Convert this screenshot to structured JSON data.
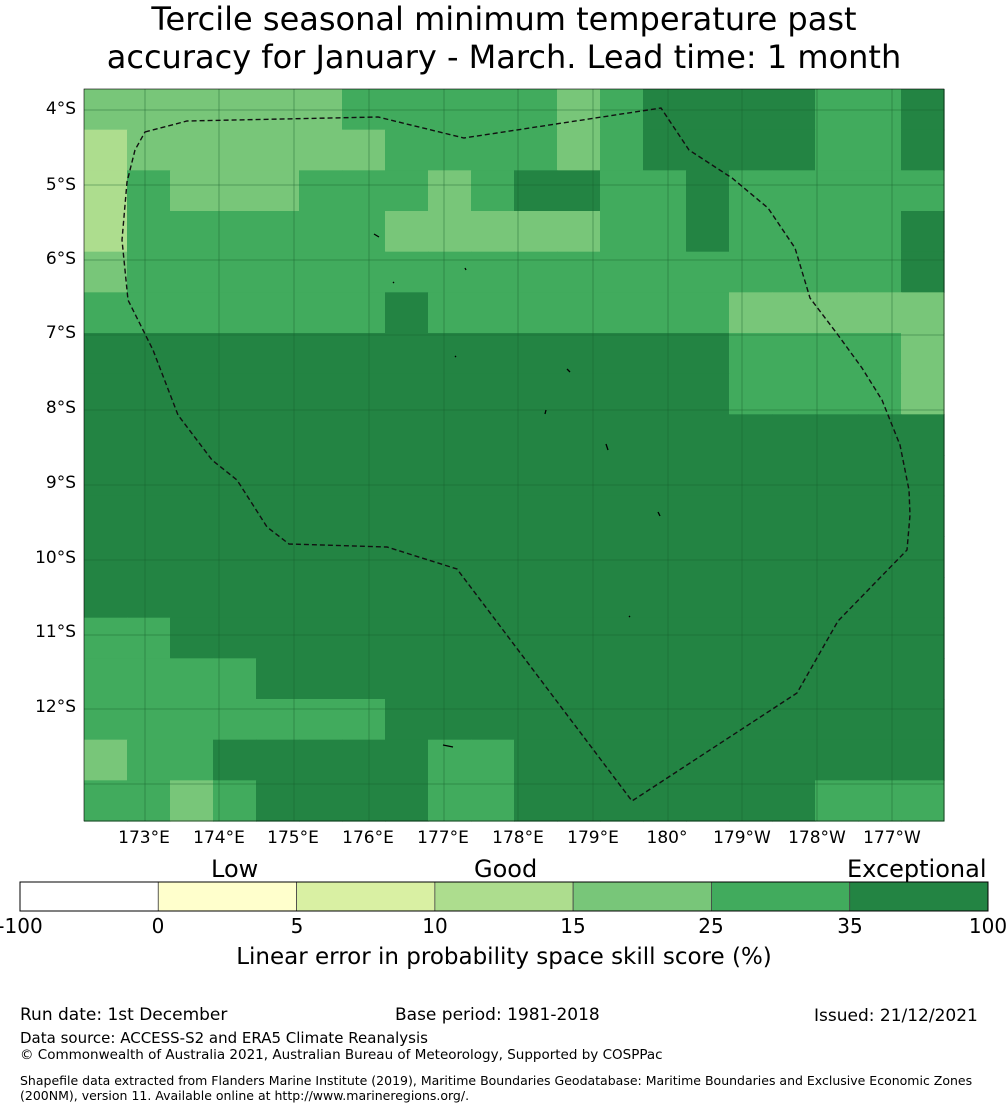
{
  "title": {
    "line1": "Tercile seasonal minimum temperature past",
    "line2": "accuracy for January - March. Lead time: 1 month"
  },
  "map": {
    "lat_labels": [
      "4°S",
      "5°S",
      "6°S",
      "7°S",
      "8°S",
      "9°S",
      "10°S",
      "11°S",
      "12°S"
    ],
    "lon_labels": [
      "173°E",
      "174°E",
      "175°E",
      "176°E",
      "177°E",
      "178°E",
      "179°E",
      "180°",
      "179°W",
      "178°W",
      "177°W"
    ],
    "grid": [
      [
        4,
        4,
        4,
        4,
        4,
        4,
        5,
        5,
        5,
        5,
        5,
        4,
        5,
        6,
        6,
        6,
        6,
        5,
        5,
        6
      ],
      [
        3,
        4,
        4,
        4,
        4,
        4,
        4,
        5,
        5,
        5,
        5,
        4,
        5,
        6,
        6,
        6,
        6,
        5,
        5,
        6
      ],
      [
        3,
        5,
        4,
        4,
        4,
        5,
        5,
        5,
        4,
        5,
        6,
        6,
        5,
        5,
        6,
        5,
        5,
        5,
        5,
        5
      ],
      [
        3,
        5,
        5,
        5,
        5,
        5,
        5,
        4,
        4,
        4,
        4,
        4,
        5,
        5,
        6,
        5,
        5,
        5,
        5,
        6
      ],
      [
        4,
        5,
        5,
        5,
        5,
        5,
        5,
        5,
        5,
        5,
        5,
        5,
        5,
        5,
        5,
        5,
        5,
        5,
        5,
        6
      ],
      [
        5,
        5,
        5,
        5,
        5,
        5,
        5,
        6,
        5,
        5,
        5,
        5,
        5,
        5,
        5,
        4,
        4,
        4,
        4,
        4
      ],
      [
        6,
        6,
        6,
        6,
        6,
        6,
        6,
        6,
        6,
        6,
        6,
        6,
        6,
        6,
        6,
        5,
        5,
        5,
        5,
        4
      ],
      [
        6,
        6,
        6,
        6,
        6,
        6,
        6,
        6,
        6,
        6,
        6,
        6,
        6,
        6,
        6,
        5,
        5,
        5,
        5,
        4
      ],
      [
        6,
        6,
        6,
        6,
        6,
        6,
        6,
        6,
        6,
        6,
        6,
        6,
        6,
        6,
        6,
        6,
        6,
        6,
        6,
        6
      ],
      [
        6,
        6,
        6,
        6,
        6,
        6,
        6,
        6,
        6,
        6,
        6,
        6,
        6,
        6,
        6,
        6,
        6,
        6,
        6,
        6
      ],
      [
        6,
        6,
        6,
        6,
        6,
        6,
        6,
        6,
        6,
        6,
        6,
        6,
        6,
        6,
        6,
        6,
        6,
        6,
        6,
        6
      ],
      [
        6,
        6,
        6,
        6,
        6,
        6,
        6,
        6,
        6,
        6,
        6,
        6,
        6,
        6,
        6,
        6,
        6,
        6,
        6,
        6
      ],
      [
        6,
        6,
        6,
        6,
        6,
        6,
        6,
        6,
        6,
        6,
        6,
        6,
        6,
        6,
        6,
        6,
        6,
        6,
        6,
        6
      ],
      [
        5,
        5,
        6,
        6,
        6,
        6,
        6,
        6,
        6,
        6,
        6,
        6,
        6,
        6,
        6,
        6,
        6,
        6,
        6,
        6
      ],
      [
        5,
        5,
        5,
        5,
        6,
        6,
        6,
        6,
        6,
        6,
        6,
        6,
        6,
        6,
        6,
        6,
        6,
        6,
        6,
        6
      ],
      [
        5,
        5,
        5,
        5,
        5,
        5,
        5,
        6,
        6,
        6,
        6,
        6,
        6,
        6,
        6,
        6,
        6,
        6,
        6,
        6
      ],
      [
        4,
        5,
        5,
        6,
        6,
        6,
        6,
        6,
        5,
        5,
        6,
        6,
        6,
        6,
        6,
        6,
        6,
        6,
        6,
        6
      ],
      [
        5,
        5,
        4,
        5,
        6,
        6,
        6,
        6,
        5,
        5,
        6,
        6,
        6,
        6,
        6,
        6,
        6,
        5,
        5,
        5
      ]
    ]
  },
  "colorbar": {
    "band_labels": {
      "low": "Low",
      "good": "Good",
      "exceptional": "Exceptional"
    },
    "colors": [
      "#ffffff",
      "#ffffcc",
      "#d9f0a3",
      "#addd8e",
      "#78c679",
      "#41ab5d",
      "#238443"
    ],
    "ticks": [
      "-100",
      "0",
      "5",
      "10",
      "15",
      "25",
      "35",
      "100"
    ],
    "title": "Linear error in probability space skill score (%)"
  },
  "footer": {
    "run_date": "Run date: 1st December",
    "base_period": "Base period: 1981-2018",
    "issued": "Issued: 21/12/2021",
    "data_source": "Data source: ACCESS-S2 and ERA5 Climate Reanalysis",
    "copyright": "© Commonwealth of Australia 2021, Australian Bureau of Meteorology, Supported by COSPPac",
    "shapefile": "Shapefile data extracted from Flanders Marine Institute (2019), Maritime Boundaries Geodatabase: Maritime Boundaries and Exclusive Economic Zones (200NM), version 11. Available online at http://www.marineregions.org/."
  }
}
